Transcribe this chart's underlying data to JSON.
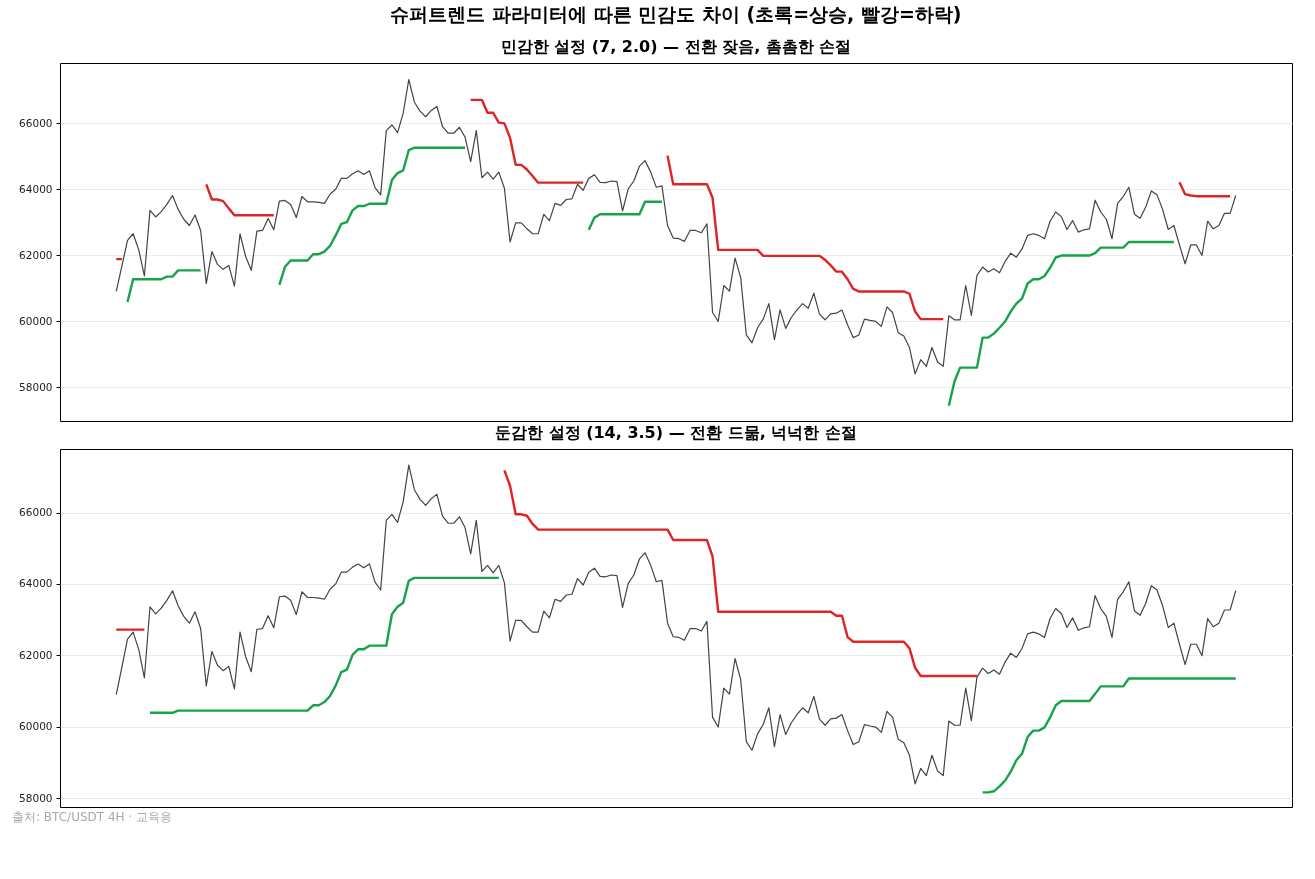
{
  "chart_data": [
    {
      "type": "line",
      "title": "슈퍼트렌드 파라미터에 따른 민감도 차이 (초록=상승, 빨강=하락)",
      "subtitle": "민감한 설정 (7, 2.0) — 전환 잦음, 촘촘한 손절",
      "categories": [
        null,
        null,
        null,
        null,
        null,
        null,
        null,
        null,
        null,
        null,
        null,
        null,
        null,
        null,
        null,
        null,
        null,
        null,
        null,
        null,
        null,
        null,
        null,
        null,
        null,
        null,
        null,
        null,
        null,
        null,
        null,
        null,
        null,
        null,
        null,
        null,
        null,
        null,
        null,
        null,
        null,
        null,
        null,
        null,
        null,
        null,
        null,
        null,
        null,
        null,
        null,
        null,
        null,
        null,
        null,
        null,
        null,
        null,
        null,
        null,
        null,
        null,
        null,
        null,
        null,
        null,
        null,
        null,
        null,
        null,
        null,
        null,
        null,
        null,
        null,
        null,
        null,
        null,
        null,
        null,
        null,
        null,
        null,
        null,
        null,
        null,
        null,
        null,
        null,
        null,
        null,
        null,
        null,
        null,
        null,
        null,
        null,
        null,
        null,
        null,
        null,
        null,
        null,
        null,
        null,
        null,
        null,
        null,
        null,
        null,
        null,
        null,
        null,
        null,
        null,
        null,
        null,
        null,
        null,
        null,
        null,
        null,
        null,
        null,
        null,
        null,
        null,
        null,
        null,
        null,
        null,
        null,
        null,
        null,
        null,
        null,
        null,
        null,
        null,
        null,
        null,
        null,
        null,
        null,
        null,
        null,
        null,
        null,
        null,
        null,
        null,
        null,
        null,
        null,
        null,
        null,
        null,
        null,
        null,
        null,
        null,
        null,
        null,
        null,
        null,
        null,
        null,
        null,
        null,
        null,
        null,
        null,
        null,
        null,
        null,
        null,
        null,
        null,
        null,
        null,
        null,
        null,
        null,
        null,
        null,
        null,
        null,
        null,
        null,
        null,
        null,
        null,
        null,
        null,
        null,
        null,
        null,
        null,
        null,
        null
      ],
      "ylim": [
        56970,
        67830
      ],
      "yticks": [
        58000,
        60000,
        62000,
        64000,
        66000
      ],
      "grid": "y",
      "tick_labels": "y",
      "legend": false,
      "series": [
        {
          "color": "#444444",
          "values": [
            60900,
            61670,
            62450,
            62650,
            62160,
            61370,
            63360,
            63160,
            63320,
            63540,
            63810,
            63390,
            63090,
            62900,
            63220,
            62750,
            61140,
            62110,
            61720,
            61570,
            61690,
            61060,
            62650,
            61960,
            61540,
            62730,
            62750,
            63110,
            62770,
            63640,
            63660,
            63540,
            63140,
            63780,
            63620,
            63620,
            63600,
            63570,
            63850,
            64000,
            64330,
            64330,
            64470,
            64560,
            64450,
            64560,
            64050,
            63830,
            65780,
            65950,
            65720,
            66300,
            67330,
            66640,
            66370,
            66200,
            66390,
            66510,
            65900,
            65700,
            65700,
            65880,
            65580,
            64840,
            65780,
            64350,
            64520,
            64310,
            64520,
            64030,
            62400,
            62980,
            62980,
            62800,
            62650,
            62650,
            63240,
            63050,
            63570,
            63510,
            63690,
            63710,
            64150,
            63970,
            64330,
            64440,
            64210,
            64200,
            64250,
            64230,
            63340,
            64010,
            64250,
            64700,
            64870,
            64520,
            64060,
            64100,
            62900,
            62520,
            62500,
            62420,
            62750,
            62750,
            62680,
            62950,
            60260,
            59990,
            61080,
            60910,
            61910,
            61320,
            59580,
            59340,
            59800,
            60060,
            60530,
            59440,
            60340,
            59780,
            60110,
            60340,
            60530,
            60390,
            60850,
            60210,
            60040,
            60220,
            60240,
            60340,
            59890,
            59500,
            59580,
            60060,
            60020,
            59990,
            59840,
            60430,
            60260,
            59650,
            59550,
            59200,
            58400,
            58830,
            58630,
            59200,
            58760,
            58630,
            60160,
            60040,
            60040,
            61080,
            60170,
            61390,
            61640,
            61490,
            61590,
            61470,
            61810,
            62060,
            61940,
            62190,
            62600,
            62650,
            62600,
            62500,
            63030,
            63310,
            63170,
            62780,
            63050,
            62700,
            62770,
            62800,
            63670,
            63310,
            63090,
            62500,
            63570,
            63780,
            64060,
            63240,
            63120,
            63460,
            63950,
            63830,
            63390,
            62780,
            62900,
            62310,
            61740,
            62310,
            62310,
            61990,
            63030,
            62800,
            62900,
            63270,
            63270,
            63810
          ]
        },
        {
          "color": "#16a34a",
          "values": [
            null,
            null,
            60580,
            61270,
            61270,
            61270,
            61270,
            61270,
            61270,
            61350,
            61350,
            61540,
            61540,
            61540,
            61540,
            61540,
            null,
            null,
            null,
            null,
            null,
            null,
            null,
            null,
            null,
            null,
            null,
            null,
            null,
            61100,
            61650,
            61840,
            61840,
            61840,
            61840,
            62030,
            62030,
            62110,
            62280,
            62600,
            62950,
            63000,
            63360,
            63490,
            63490,
            63560,
            63560,
            63560,
            63560,
            64280,
            64490,
            64570,
            65190,
            65260,
            65260,
            65260,
            65260,
            65260,
            65260,
            65260,
            65260,
            65260,
            65260,
            null,
            null,
            null,
            null,
            null,
            null,
            null,
            null,
            null,
            null,
            null,
            null,
            null,
            null,
            null,
            null,
            null,
            null,
            null,
            null,
            null,
            62770,
            63140,
            63240,
            63240,
            63240,
            63240,
            63240,
            63240,
            63240,
            63240,
            63620,
            63620,
            63620,
            63620,
            null,
            null,
            null,
            null,
            null,
            null,
            null,
            null,
            null,
            null,
            null,
            null,
            null,
            null,
            null,
            null,
            null,
            null,
            null,
            null,
            null,
            null,
            null,
            null,
            null,
            null,
            null,
            null,
            null,
            null,
            null,
            null,
            null,
            null,
            null,
            null,
            null,
            null,
            null,
            null,
            null,
            null,
            null,
            null,
            null,
            null,
            null,
            null,
            null,
            null,
            57430,
            58170,
            58590,
            58590,
            58590,
            58590,
            59500,
            59500,
            59620,
            59800,
            59990,
            60290,
            60530,
            60680,
            61140,
            61270,
            61270,
            61370,
            61620,
            61930,
            61990,
            61990,
            61990,
            61990,
            61990,
            61990,
            62060,
            62230,
            62230,
            62230,
            62230,
            62230,
            62400,
            62400,
            62400,
            62400,
            62400,
            62400,
            62400,
            62400,
            62400,
            null,
            null,
            null,
            null,
            null,
            null,
            null,
            null,
            null,
            null,
            null
          ]
        },
        {
          "color": "#e02424",
          "values": [
            61880,
            61880,
            null,
            null,
            null,
            null,
            null,
            null,
            null,
            null,
            null,
            null,
            null,
            null,
            null,
            null,
            64150,
            63690,
            63690,
            63640,
            63420,
            63210,
            63210,
            63210,
            63210,
            63210,
            63210,
            63210,
            63210,
            null,
            null,
            null,
            null,
            null,
            null,
            null,
            null,
            null,
            null,
            null,
            null,
            null,
            null,
            null,
            null,
            null,
            null,
            null,
            null,
            null,
            null,
            null,
            null,
            null,
            null,
            null,
            null,
            null,
            null,
            null,
            null,
            null,
            null,
            66710,
            66710,
            66710,
            66320,
            66320,
            66020,
            66000,
            65560,
            64740,
            64740,
            64600,
            64400,
            64200,
            64200,
            64200,
            64200,
            64200,
            64200,
            64200,
            64200,
            64200,
            null,
            null,
            null,
            null,
            null,
            null,
            null,
            null,
            null,
            null,
            null,
            null,
            null,
            null,
            65020,
            64150,
            64150,
            64150,
            64150,
            64150,
            64150,
            64150,
            63740,
            62160,
            62160,
            62160,
            62160,
            62160,
            62160,
            62160,
            62160,
            61980,
            61980,
            61980,
            61980,
            61980,
            61980,
            61980,
            61980,
            61980,
            61980,
            61980,
            61860,
            61690,
            61500,
            61500,
            61270,
            60980,
            60900,
            60900,
            60900,
            60900,
            60900,
            60900,
            60900,
            60900,
            60900,
            60830,
            60290,
            60060,
            60060,
            60060,
            60060,
            60060,
            null,
            null,
            null,
            null,
            null,
            null,
            null,
            null,
            null,
            null,
            null,
            null,
            null,
            null,
            null,
            null,
            null,
            null,
            null,
            null,
            null,
            null,
            null,
            null,
            null,
            null,
            null,
            null,
            null,
            null,
            null,
            null,
            null,
            null,
            null,
            null,
            null,
            null,
            null,
            null,
            null,
            64210,
            63850,
            63810,
            63790,
            63790,
            63790,
            63790,
            63790,
            63790,
            63790,
            null
          ]
        }
      ]
    },
    {
      "type": "line",
      "title": "둔감한 설정 (14, 3.5) — 전환 드묾, 넉넉한 손절",
      "categories": [
        null,
        null,
        null,
        null,
        null,
        null,
        null,
        null,
        null,
        null,
        null,
        null,
        null,
        null,
        null,
        null,
        null,
        null,
        null,
        null,
        null,
        null,
        null,
        null,
        null,
        null,
        null,
        null,
        null,
        null,
        null,
        null,
        null,
        null,
        null,
        null,
        null,
        null,
        null,
        null,
        null,
        null,
        null,
        null,
        null,
        null,
        null,
        null,
        null,
        null,
        null,
        null,
        null,
        null,
        null,
        null,
        null,
        null,
        null,
        null,
        null,
        null,
        null,
        null,
        null,
        null,
        null,
        null,
        null,
        null,
        null,
        null,
        null,
        null,
        null,
        null,
        null,
        null,
        null,
        null,
        null,
        null,
        null,
        null,
        null,
        null,
        null,
        null,
        null,
        null,
        null,
        null,
        null,
        null,
        null,
        null,
        null,
        null,
        null,
        null,
        null,
        null,
        null,
        null,
        null,
        null,
        null,
        null,
        null,
        null,
        null,
        null,
        null,
        null,
        null,
        null,
        null,
        null,
        null,
        null,
        null,
        null,
        null,
        null,
        null,
        null,
        null,
        null,
        null,
        null,
        null,
        null,
        null,
        null,
        null,
        null,
        null,
        null,
        null,
        null,
        null,
        null,
        null,
        null,
        null,
        null,
        null,
        null,
        null,
        null,
        null,
        null,
        null,
        null,
        null,
        null,
        null,
        null,
        null,
        null,
        null,
        null,
        null,
        null,
        null,
        null,
        null,
        null,
        null,
        null,
        null,
        null,
        null,
        null,
        null,
        null,
        null,
        null,
        null,
        null,
        null,
        null,
        null,
        null,
        null,
        null,
        null,
        null,
        null,
        null,
        null,
        null,
        null,
        null,
        null,
        null,
        null,
        null,
        null,
        null
      ],
      "ylim": [
        57750,
        67780
      ],
      "yticks": [
        58000,
        60000,
        62000,
        64000,
        66000
      ],
      "grid": "y",
      "tick_labels": "y",
      "legend": false,
      "annotations": [
        "출처: BTC/USDT 4H · 교육용"
      ],
      "series": [
        {
          "color": "#444444",
          "values": [
            60900,
            61670,
            62450,
            62650,
            62160,
            61370,
            63360,
            63160,
            63320,
            63540,
            63810,
            63390,
            63090,
            62900,
            63220,
            62750,
            61140,
            62110,
            61720,
            61570,
            61690,
            61060,
            62650,
            61960,
            61540,
            62730,
            62750,
            63110,
            62770,
            63640,
            63660,
            63540,
            63140,
            63780,
            63620,
            63620,
            63600,
            63570,
            63850,
            64000,
            64330,
            64330,
            64470,
            64560,
            64450,
            64560,
            64050,
            63830,
            65780,
            65950,
            65720,
            66300,
            67330,
            66640,
            66370,
            66200,
            66390,
            66510,
            65900,
            65700,
            65700,
            65880,
            65580,
            64840,
            65780,
            64350,
            64520,
            64310,
            64520,
            64030,
            62400,
            62980,
            62980,
            62800,
            62650,
            62650,
            63240,
            63050,
            63570,
            63510,
            63690,
            63710,
            64150,
            63970,
            64330,
            64440,
            64210,
            64200,
            64250,
            64230,
            63340,
            64010,
            64250,
            64700,
            64870,
            64520,
            64060,
            64100,
            62900,
            62520,
            62500,
            62420,
            62750,
            62750,
            62680,
            62950,
            60260,
            59990,
            61080,
            60910,
            61910,
            61320,
            59580,
            59340,
            59800,
            60060,
            60530,
            59440,
            60340,
            59780,
            60110,
            60340,
            60530,
            60390,
            60850,
            60210,
            60040,
            60220,
            60240,
            60340,
            59890,
            59500,
            59580,
            60060,
            60020,
            59990,
            59840,
            60430,
            60260,
            59650,
            59550,
            59200,
            58400,
            58830,
            58630,
            59200,
            58760,
            58630,
            60160,
            60040,
            60040,
            61080,
            60170,
            61390,
            61640,
            61490,
            61590,
            61470,
            61810,
            62060,
            61940,
            62190,
            62600,
            62650,
            62600,
            62500,
            63030,
            63310,
            63170,
            62780,
            63050,
            62700,
            62770,
            62800,
            63670,
            63310,
            63090,
            62500,
            63570,
            63780,
            64060,
            63240,
            63120,
            63460,
            63950,
            63830,
            63390,
            62780,
            62900,
            62310,
            61740,
            62310,
            62310,
            61990,
            63030,
            62800,
            62900,
            63270,
            63270,
            63810
          ]
        },
        {
          "color": "#16a34a",
          "values": [
            null,
            null,
            null,
            null,
            null,
            null,
            60390,
            60390,
            60390,
            60390,
            60390,
            60450,
            60450,
            60450,
            60450,
            60450,
            60450,
            60450,
            60450,
            60450,
            60450,
            60450,
            60450,
            60450,
            60450,
            60450,
            60450,
            60450,
            60450,
            60450,
            60450,
            60450,
            60450,
            60450,
            60450,
            60600,
            60600,
            60690,
            60860,
            61150,
            61530,
            61600,
            62010,
            62170,
            62170,
            62270,
            62270,
            62270,
            62270,
            63150,
            63360,
            63470,
            64090,
            64170,
            64170,
            64170,
            64170,
            64170,
            64170,
            64170,
            64170,
            64170,
            64170,
            64170,
            64170,
            64170,
            64170,
            64170,
            64170,
            null,
            null,
            null,
            null,
            null,
            null,
            null,
            null,
            null,
            null,
            null,
            null,
            null,
            null,
            null,
            null,
            null,
            null,
            null,
            null,
            null,
            null,
            null,
            null,
            null,
            null,
            null,
            null,
            null,
            null,
            null,
            null,
            null,
            null,
            null,
            null,
            null,
            null,
            null,
            null,
            null,
            null,
            null,
            null,
            null,
            null,
            null,
            null,
            null,
            null,
            null,
            null,
            null,
            null,
            null,
            null,
            null,
            null,
            null,
            null,
            null,
            null,
            null,
            null,
            null,
            null,
            null,
            null,
            null,
            null,
            null,
            null,
            null,
            null,
            null,
            null,
            null,
            null,
            null,
            null,
            null,
            null,
            null,
            null,
            null,
            58160,
            58160,
            58190,
            58330,
            58490,
            58740,
            59060,
            59240,
            59710,
            59890,
            59890,
            59980,
            60260,
            60600,
            60720,
            60720,
            60720,
            60720,
            60720,
            60720,
            60920,
            61130,
            61130,
            61130,
            61130,
            61130,
            61350,
            61350,
            61350,
            61350,
            61350,
            61350,
            61350,
            61350,
            61350,
            61350,
            61350,
            61350,
            61350,
            61350,
            61350,
            61350,
            61350,
            61350,
            61350,
            61350
          ]
        },
        {
          "color": "#e02424",
          "values": [
            62720,
            62720,
            62720,
            62720,
            62720,
            62720,
            null,
            null,
            null,
            null,
            null,
            null,
            null,
            null,
            null,
            null,
            null,
            null,
            null,
            null,
            null,
            null,
            null,
            null,
            null,
            null,
            null,
            null,
            null,
            null,
            null,
            null,
            null,
            null,
            null,
            null,
            null,
            null,
            null,
            null,
            null,
            null,
            null,
            null,
            null,
            null,
            null,
            null,
            null,
            null,
            null,
            null,
            null,
            null,
            null,
            null,
            null,
            null,
            null,
            null,
            null,
            null,
            null,
            null,
            null,
            null,
            null,
            null,
            null,
            67180,
            66750,
            65950,
            65950,
            65910,
            65680,
            65520,
            65520,
            65520,
            65520,
            65520,
            65520,
            65520,
            65520,
            65520,
            65520,
            65520,
            65520,
            65520,
            65520,
            65520,
            65520,
            65520,
            65520,
            65520,
            65520,
            65520,
            65520,
            65520,
            65520,
            65230,
            65230,
            65230,
            65230,
            65230,
            65230,
            65230,
            64770,
            63220,
            63220,
            63220,
            63220,
            63220,
            63220,
            63220,
            63220,
            63220,
            63220,
            63220,
            63220,
            63220,
            63220,
            63220,
            63220,
            63220,
            63220,
            63220,
            63220,
            63220,
            63110,
            63110,
            62510,
            62380,
            62380,
            62380,
            62380,
            62380,
            62380,
            62380,
            62380,
            62380,
            62380,
            62200,
            61650,
            61420,
            61420,
            61420,
            61420,
            61420,
            61420,
            61420,
            61420,
            61420,
            61420,
            61420,
            null,
            null,
            null,
            null,
            null,
            null,
            null,
            null,
            null,
            null,
            null,
            null,
            null,
            null,
            null,
            null,
            null,
            null,
            null,
            null,
            null,
            null,
            null,
            null,
            null,
            null,
            null,
            null,
            null,
            null,
            null,
            null,
            null,
            null,
            null,
            null,
            null,
            null,
            null,
            null,
            null,
            null,
            null,
            null,
            null,
            null
          ]
        }
      ]
    }
  ]
}
